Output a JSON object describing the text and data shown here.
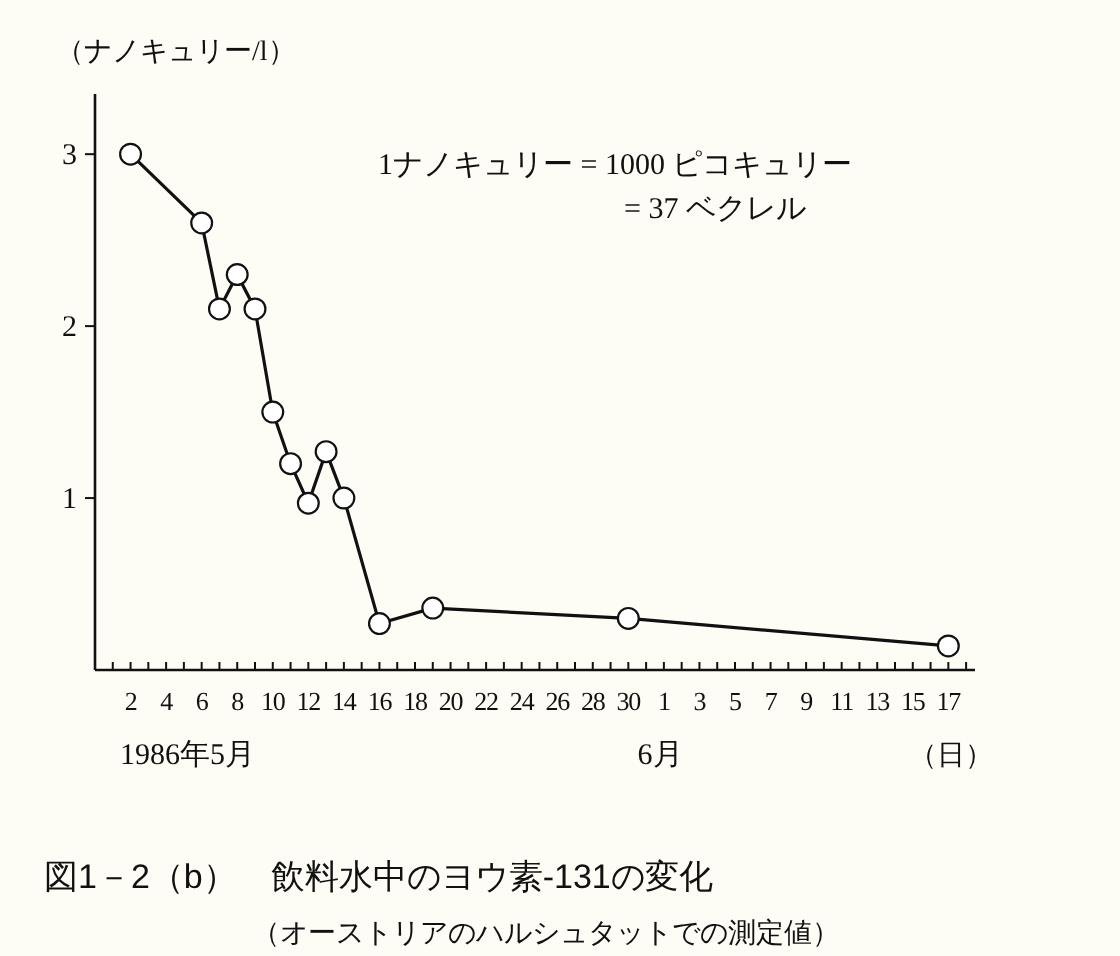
{
  "chart_data": {
    "type": "line",
    "title": "図1－2（b）　飲料水中のヨウ素-131の変化",
    "subtitle": "（オーストリアのハルシュタットでの測定値）",
    "ylabel": "（ナノキュリー/l）",
    "xlabel": "（日）",
    "annotations": [
      "1ナノキュリー = 1000 ピコキュリー",
      "= 37 ベクレル",
      "1986年5月",
      "6月"
    ],
    "x": [
      "1986-05-02",
      "1986-05-06",
      "1986-05-07",
      "1986-05-08",
      "1986-05-09",
      "1986-05-10",
      "1986-05-11",
      "1986-05-12",
      "1986-05-13",
      "1986-05-14",
      "1986-05-16",
      "1986-05-19",
      "1986-05-30",
      "1986-06-17"
    ],
    "series": [
      {
        "color": "#111111",
        "values": [
          3.0,
          2.6,
          2.1,
          2.3,
          2.1,
          1.5,
          1.2,
          0.97,
          1.27,
          1.0,
          0.27,
          0.36,
          0.3,
          0.14
        ]
      }
    ],
    "marker": "circle",
    "line_style": "solid",
    "ylim": [
      0,
      3.35
    ],
    "yticks": [
      1,
      2,
      3
    ],
    "xlim": [
      "1986-04-30",
      "1986-06-18T12:00"
    ],
    "xticks": [
      {
        "value": "1986-05-01",
        "label": null
      },
      {
        "value": "1986-05-02",
        "label": "2"
      },
      {
        "value": "1986-05-03",
        "label": null
      },
      {
        "value": "1986-05-04",
        "label": "4"
      },
      {
        "value": "1986-05-05",
        "label": null
      },
      {
        "value": "1986-05-06",
        "label": "6"
      },
      {
        "value": "1986-05-07",
        "label": null
      },
      {
        "value": "1986-05-08",
        "label": "8"
      },
      {
        "value": "1986-05-09",
        "label": null
      },
      {
        "value": "1986-05-10",
        "label": "10"
      },
      {
        "value": "1986-05-11",
        "label": null
      },
      {
        "value": "1986-05-12",
        "label": "12"
      },
      {
        "value": "1986-05-13",
        "label": null
      },
      {
        "value": "1986-05-14",
        "label": "14"
      },
      {
        "value": "1986-05-15",
        "label": null
      },
      {
        "value": "1986-05-16",
        "label": "16"
      },
      {
        "value": "1986-05-17",
        "label": null
      },
      {
        "value": "1986-05-18",
        "label": "18"
      },
      {
        "value": "1986-05-19",
        "label": null
      },
      {
        "value": "1986-05-20",
        "label": "20"
      },
      {
        "value": "1986-05-21",
        "label": null
      },
      {
        "value": "1986-05-22",
        "label": "22"
      },
      {
        "value": "1986-05-23",
        "label": null
      },
      {
        "value": "1986-05-24",
        "label": "24"
      },
      {
        "value": "1986-05-25",
        "label": null
      },
      {
        "value": "1986-05-26",
        "label": "26"
      },
      {
        "value": "1986-05-27",
        "label": null
      },
      {
        "value": "1986-05-28",
        "label": "28"
      },
      {
        "value": "1986-05-29",
        "label": null
      },
      {
        "value": "1986-05-30",
        "label": "30"
      },
      {
        "value": "1986-05-31",
        "label": null
      },
      {
        "value": "1986-06-01",
        "label": "1"
      },
      {
        "value": "1986-06-02",
        "label": null
      },
      {
        "value": "1986-06-03",
        "label": "3"
      },
      {
        "value": "1986-06-04",
        "label": null
      },
      {
        "value": "1986-06-05",
        "label": "5"
      },
      {
        "value": "1986-06-06",
        "label": null
      },
      {
        "value": "1986-06-07",
        "label": "7"
      },
      {
        "value": "1986-06-08",
        "label": null
      },
      {
        "value": "1986-06-09",
        "label": "9"
      },
      {
        "value": "1986-06-10",
        "label": null
      },
      {
        "value": "1986-06-11",
        "label": "11"
      },
      {
        "value": "1986-06-12",
        "label": null
      },
      {
        "value": "1986-06-13",
        "label": "13"
      },
      {
        "value": "1986-06-14",
        "label": null
      },
      {
        "value": "1986-06-15",
        "label": "15"
      },
      {
        "value": "1986-06-16",
        "label": null
      },
      {
        "value": "1986-06-17",
        "label": "17"
      },
      {
        "value": "1986-06-18",
        "label": null
      }
    ]
  }
}
